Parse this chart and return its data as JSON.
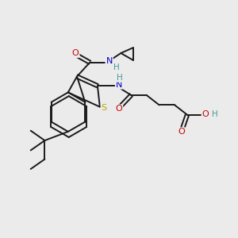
{
  "background_color": "#ebebeb",
  "bond_color": "#1a1a1a",
  "atom_colors": {
    "S": "#b8a800",
    "N": "#0000cc",
    "O": "#cc0000",
    "H": "#4a9898",
    "C": "#1a1a1a"
  },
  "figsize": [
    3.0,
    3.0
  ],
  "dpi": 100
}
